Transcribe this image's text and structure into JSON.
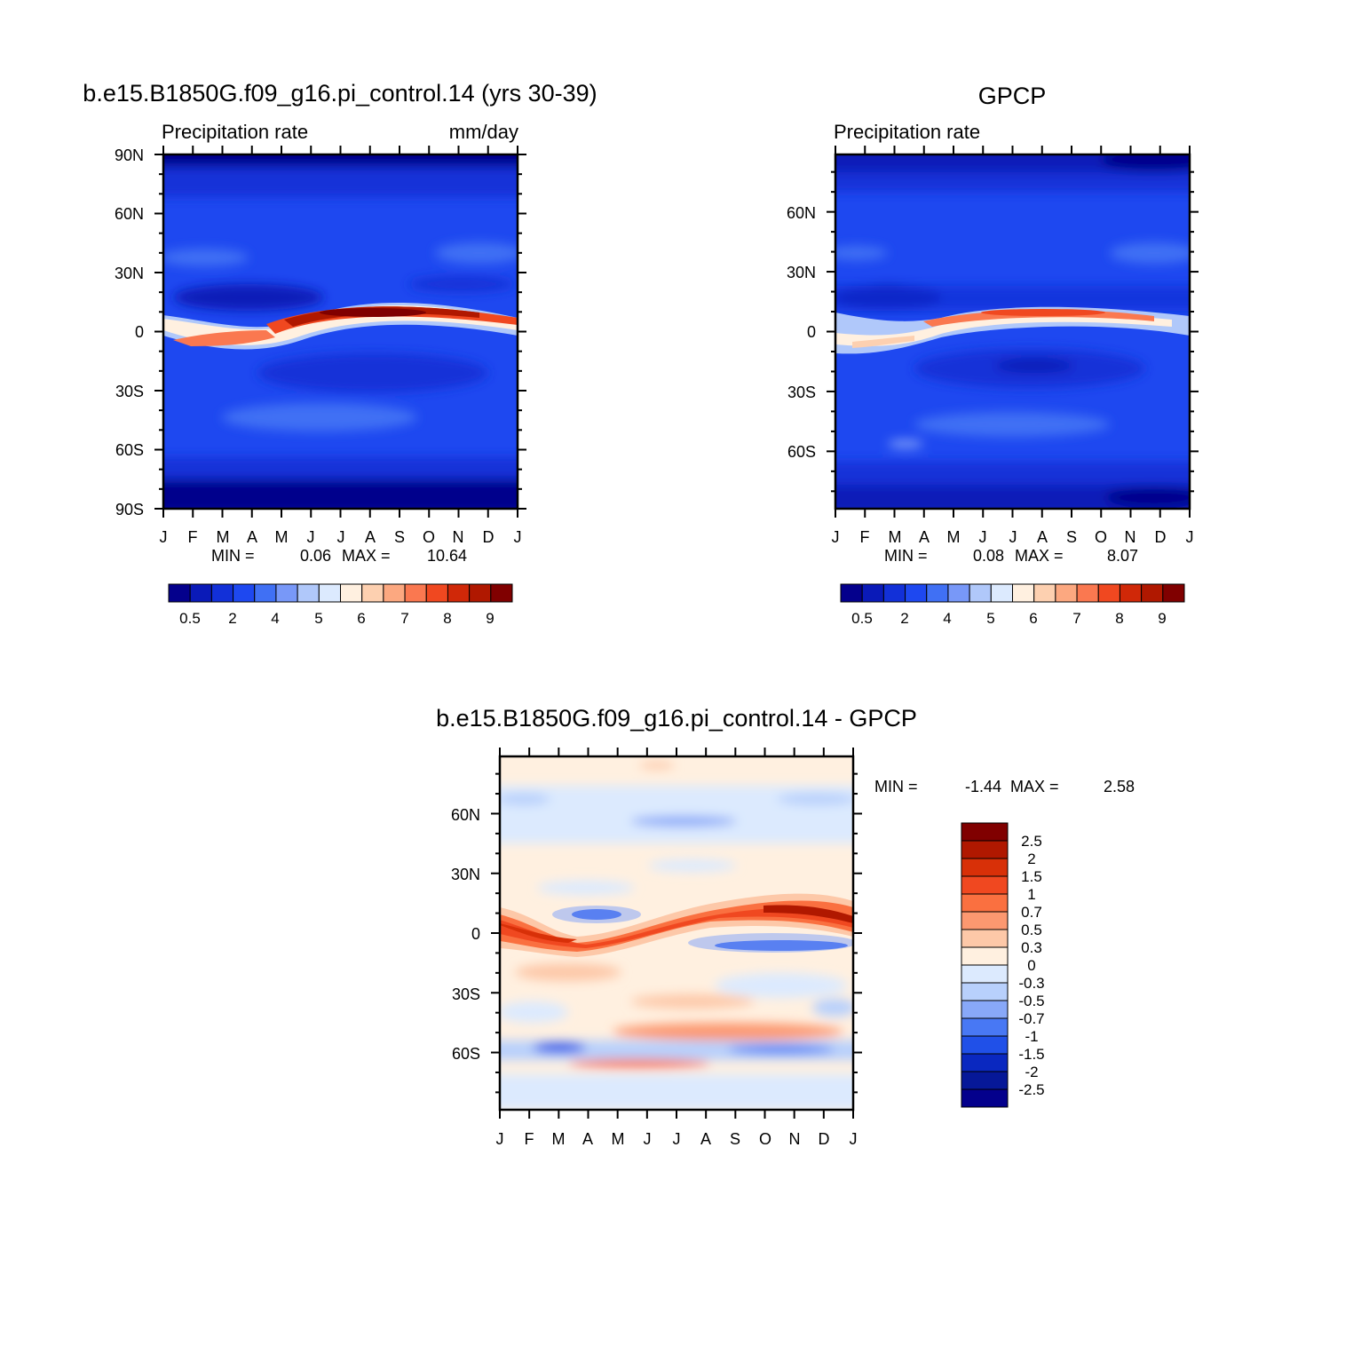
{
  "chart_data": [
    {
      "type": "heatmap",
      "title": "b.e15.B1850G.f09_g16.pi_control.14 (yrs 30-39)",
      "left_label": "Precipitation rate",
      "right_label": "mm/day",
      "x_tick_labels": [
        "J",
        "F",
        "M",
        "A",
        "M",
        "J",
        "J",
        "A",
        "S",
        "O",
        "N",
        "D",
        "J"
      ],
      "y_tick_labels": [
        "90N",
        "60N",
        "30N",
        "0",
        "30S",
        "60S",
        "90S"
      ],
      "y_tick_values": [
        90,
        60,
        30,
        0,
        -30,
        -60,
        -90
      ],
      "ylim": [
        -90,
        90
      ],
      "min_label": "MIN =",
      "min_value": "0.06",
      "max_label": "MAX =",
      "max_value": "10.64",
      "colorbar_labels": [
        "0.5",
        "2",
        "4",
        "5",
        "6",
        "7",
        "8",
        "9"
      ],
      "colorbar_colors": [
        "#04008c",
        "#0a1ab8",
        "#1230d8",
        "#1e48f0",
        "#4070f4",
        "#7898f8",
        "#b0c8fa",
        "#dceafe",
        "#fff0e0",
        "#fdd0b0",
        "#fca880",
        "#fa7850",
        "#f04820",
        "#d02808",
        "#b01800",
        "#800000"
      ]
    },
    {
      "type": "heatmap",
      "title": "GPCP",
      "left_label": "Precipitation rate",
      "right_label": "",
      "x_tick_labels": [
        "J",
        "F",
        "M",
        "A",
        "M",
        "J",
        "J",
        "A",
        "S",
        "O",
        "N",
        "D",
        "J"
      ],
      "y_tick_labels": [
        "60N",
        "30N",
        "0",
        "30S",
        "60S"
      ],
      "y_tick_values": [
        60,
        30,
        0,
        -30,
        -60
      ],
      "ylim": [
        -88.75,
        88.75
      ],
      "min_label": "MIN =",
      "min_value": "0.08",
      "max_label": "MAX =",
      "max_value": "8.07",
      "colorbar_labels": [
        "0.5",
        "2",
        "4",
        "5",
        "6",
        "7",
        "8",
        "9"
      ],
      "colorbar_colors": [
        "#04008c",
        "#0a1ab8",
        "#1230d8",
        "#1e48f0",
        "#4070f4",
        "#7898f8",
        "#b0c8fa",
        "#dceafe",
        "#fff0e0",
        "#fdd0b0",
        "#fca880",
        "#fa7850",
        "#f04820",
        "#d02808",
        "#b01800",
        "#800000"
      ]
    },
    {
      "type": "heatmap",
      "title": "b.e15.B1850G.f09_g16.pi_control.14 - GPCP",
      "x_tick_labels": [
        "J",
        "F",
        "M",
        "A",
        "M",
        "J",
        "J",
        "A",
        "S",
        "O",
        "N",
        "D",
        "J"
      ],
      "y_tick_labels": [
        "60N",
        "30N",
        "0",
        "30S",
        "60S"
      ],
      "y_tick_values": [
        60,
        30,
        0,
        -30,
        -60
      ],
      "ylim": [
        -88.75,
        88.75
      ],
      "min_label": "MIN =",
      "min_value": "-1.44",
      "max_label": "MAX =",
      "max_value": "2.58",
      "colorbar_labels": [
        "2.5",
        "2",
        "1.5",
        "1",
        "0.7",
        "0.5",
        "0.3",
        "0",
        "-0.3",
        "-0.5",
        "-0.7",
        "-1",
        "-1.5",
        "-2",
        "-2.5"
      ],
      "colorbar_colors": [
        "#800000",
        "#b01800",
        "#d83008",
        "#f04820",
        "#fa7040",
        "#fc9870",
        "#fdc8a8",
        "#fff0e0",
        "#dceafe",
        "#b8d0fc",
        "#88a8f8",
        "#4878f4",
        "#2050e8",
        "#0a28c0",
        "#061898",
        "#04008c"
      ]
    }
  ]
}
